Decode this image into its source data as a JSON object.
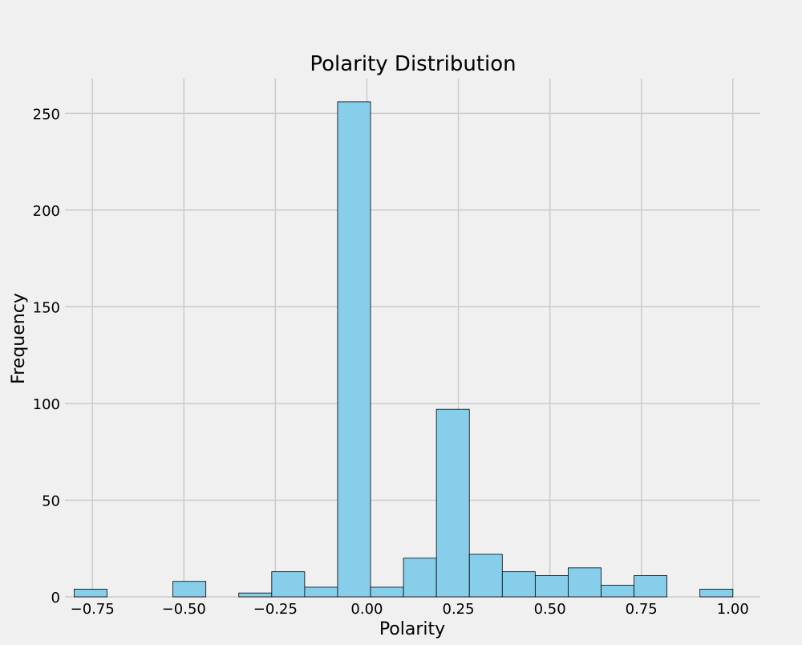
{
  "chart_data": {
    "type": "bar",
    "title": "Polarity Distribution",
    "xlabel": "Polarity",
    "ylabel": "Frequency",
    "xlim": [
      -0.825,
      1.075
    ],
    "ylim": [
      0,
      268
    ],
    "x_ticks": [
      -0.75,
      -0.5,
      -0.25,
      0.0,
      0.25,
      0.5,
      0.75,
      1.0
    ],
    "x_tick_labels": [
      "−0.75",
      "−0.50",
      "−0.25",
      "0.00",
      "0.25",
      "0.50",
      "0.75",
      "1.00"
    ],
    "y_ticks": [
      0,
      50,
      100,
      150,
      200,
      250
    ],
    "y_tick_labels": [
      "0",
      "50",
      "100",
      "150",
      "200",
      "250"
    ],
    "grid": true,
    "bar_color": "#87ceeb",
    "edge_color": "#000000",
    "background_color": "#f0f0f0",
    "grid_color": "#cbcbcb",
    "bins": [
      {
        "start": -0.8,
        "end": -0.71,
        "value": 4
      },
      {
        "start": -0.53,
        "end": -0.44,
        "value": 8
      },
      {
        "start": -0.35,
        "end": -0.26,
        "value": 2
      },
      {
        "start": -0.26,
        "end": -0.17,
        "value": 13
      },
      {
        "start": -0.17,
        "end": -0.08,
        "value": 5
      },
      {
        "start": -0.08,
        "end": 0.01,
        "value": 256
      },
      {
        "start": 0.01,
        "end": 0.1,
        "value": 5
      },
      {
        "start": 0.1,
        "end": 0.19,
        "value": 20
      },
      {
        "start": 0.19,
        "end": 0.28,
        "value": 97
      },
      {
        "start": 0.28,
        "end": 0.37,
        "value": 22
      },
      {
        "start": 0.37,
        "end": 0.46,
        "value": 13
      },
      {
        "start": 0.46,
        "end": 0.55,
        "value": 11
      },
      {
        "start": 0.55,
        "end": 0.64,
        "value": 15
      },
      {
        "start": 0.64,
        "end": 0.73,
        "value": 6
      },
      {
        "start": 0.73,
        "end": 0.82,
        "value": 11
      },
      {
        "start": 0.91,
        "end": 1.0,
        "value": 4
      }
    ]
  }
}
